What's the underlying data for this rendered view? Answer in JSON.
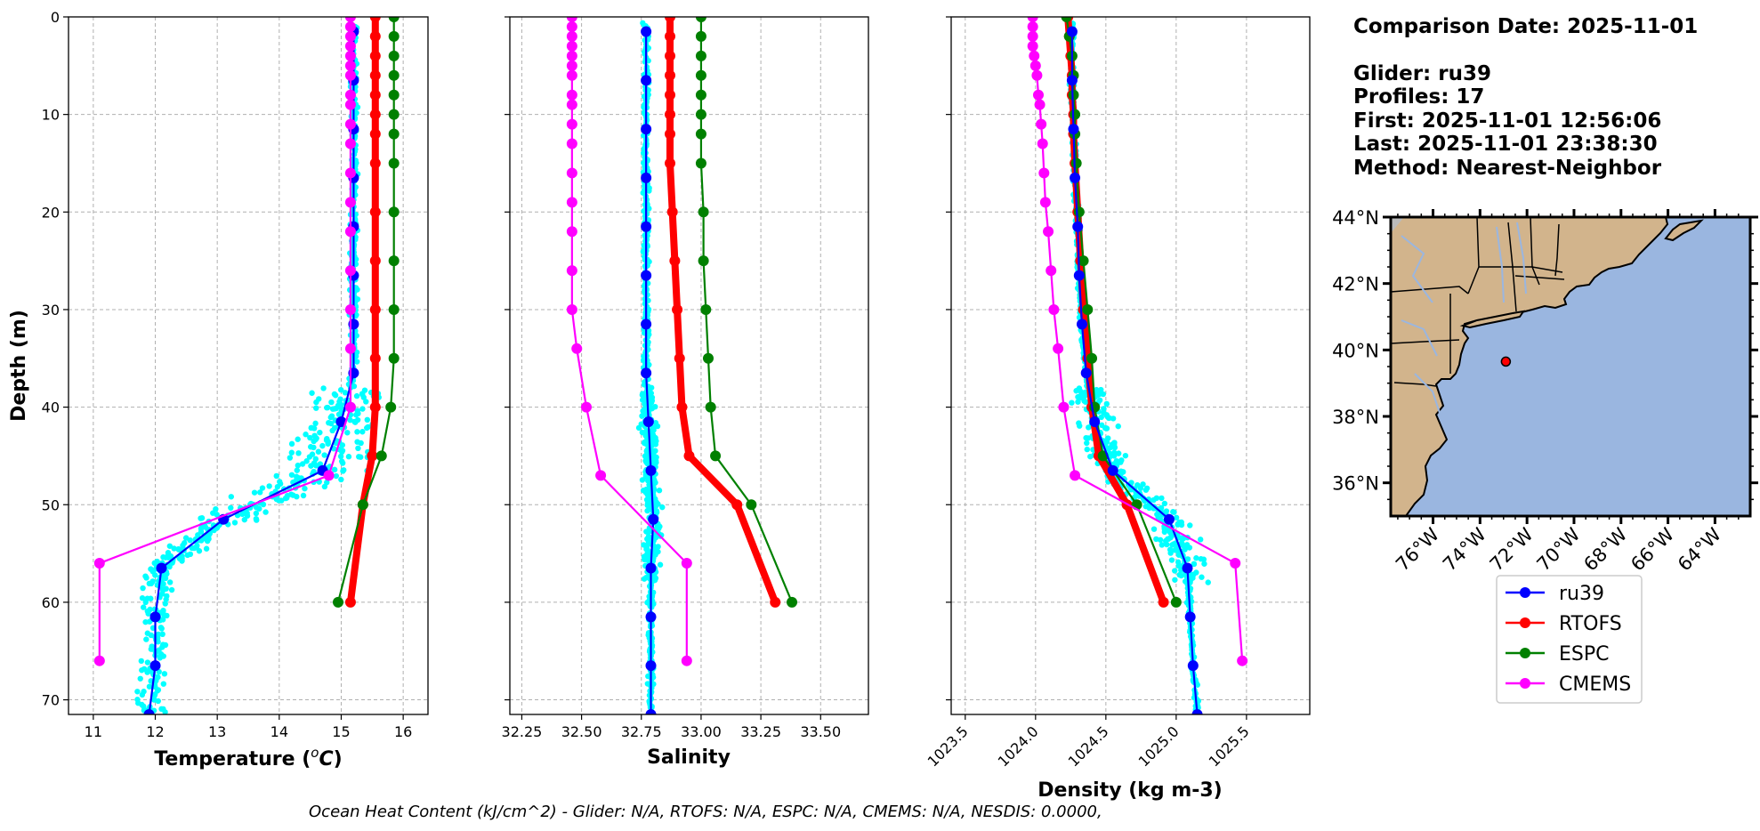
{
  "info": {
    "comparison_date": "Comparison Date: 2025-11-01",
    "glider": "Glider: ru39",
    "profiles": "Profiles: 17",
    "first": "First: 2025-11-01 12:56:06",
    "last": "Last: 2025-11-01 23:38:30",
    "method": "Method: Nearest-Neighbor"
  },
  "footer": "Ocean Heat Content (kJ/cm^2) - Glider: N/A,  RTOFS: N/A,  ESPC: N/A,  CMEMS: N/A,  NESDIS: 0.0000,",
  "colors": {
    "ru39": "#0000ff",
    "RTOFS": "#ff0000",
    "ESPC": "#008000",
    "CMEMS": "#ff00ff",
    "scatter": "#00ffff",
    "land": "#d2b48c",
    "ocean": "#9ab6e0",
    "river": "#9ab6e0"
  },
  "legend": [
    "ru39",
    "RTOFS",
    "ESPC",
    "CMEMS"
  ],
  "map": {
    "lat_ticks": [
      "44°N",
      "42°N",
      "40°N",
      "38°N",
      "36°N"
    ],
    "lon_ticks": [
      "76°W",
      "74°W",
      "72°W",
      "70°W",
      "68°W",
      "66°W",
      "64°W"
    ],
    "lat_range": [
      35,
      44
    ],
    "lon_range": [
      -77.8,
      -62.5
    ],
    "glider_position": {
      "lon": -72.9,
      "lat": 39.65
    }
  },
  "chart_data": [
    {
      "type": "line",
      "xlabel": "Temperature (°C)",
      "ylabel": "Depth (m)",
      "xlim": [
        10.6,
        16.4
      ],
      "ylim": [
        71.5,
        0
      ],
      "x_ticks": [
        11,
        12,
        13,
        14,
        15,
        16
      ],
      "y_ticks": [
        0,
        10,
        20,
        30,
        40,
        50,
        60,
        70
      ],
      "series": [
        {
          "name": "ru39",
          "depth": [
            1.5,
            6.5,
            11.5,
            16.5,
            21.5,
            26.5,
            31.5,
            36.5,
            41.5,
            46.5,
            51.5,
            56.5,
            61.5,
            66.5,
            71.5
          ],
          "values": [
            15.2,
            15.2,
            15.2,
            15.2,
            15.2,
            15.2,
            15.2,
            15.2,
            15.0,
            14.7,
            13.1,
            12.1,
            12.0,
            12.0,
            11.9
          ]
        },
        {
          "name": "RTOFS",
          "depth": [
            0,
            2,
            4,
            6,
            8,
            10,
            12,
            15,
            20,
            25,
            30,
            35,
            40,
            45,
            50,
            60
          ],
          "values": [
            15.55,
            15.55,
            15.55,
            15.55,
            15.55,
            15.55,
            15.55,
            15.55,
            15.55,
            15.55,
            15.55,
            15.55,
            15.55,
            15.5,
            15.35,
            15.15
          ]
        },
        {
          "name": "ESPC",
          "depth": [
            0,
            2,
            4,
            6,
            8,
            10,
            12,
            15,
            20,
            25,
            30,
            35,
            40,
            45,
            50,
            60
          ],
          "values": [
            15.85,
            15.85,
            15.85,
            15.85,
            15.85,
            15.85,
            15.85,
            15.85,
            15.85,
            15.85,
            15.85,
            15.85,
            15.8,
            15.65,
            15.35,
            14.95
          ]
        },
        {
          "name": "CMEMS",
          "depth": [
            0,
            1,
            2,
            3,
            4,
            5,
            6,
            8,
            9,
            11,
            13,
            16,
            19,
            22,
            26,
            30,
            34,
            40,
            47,
            56,
            66
          ],
          "values": [
            15.15,
            15.15,
            15.15,
            15.15,
            15.15,
            15.15,
            15.15,
            15.15,
            15.15,
            15.15,
            15.15,
            15.15,
            15.15,
            15.15,
            15.15,
            15.15,
            15.15,
            15.15,
            14.8,
            11.1,
            11.1
          ]
        }
      ]
    },
    {
      "type": "line",
      "xlabel": "Salinity",
      "xlim": [
        32.2,
        33.7
      ],
      "ylim": [
        71.5,
        0
      ],
      "x_ticks": [
        32.25,
        32.5,
        32.75,
        33.0,
        33.25,
        33.5
      ],
      "x_tick_labels": [
        "32.25",
        "32.50",
        "32.75",
        "33.00",
        "33.25",
        "33.50"
      ],
      "series": [
        {
          "name": "ru39",
          "depth": [
            1.5,
            6.5,
            11.5,
            16.5,
            21.5,
            26.5,
            31.5,
            36.5,
            41.5,
            46.5,
            51.5,
            56.5,
            61.5,
            66.5,
            71.5
          ],
          "values": [
            32.77,
            32.77,
            32.77,
            32.77,
            32.77,
            32.77,
            32.77,
            32.77,
            32.78,
            32.79,
            32.8,
            32.79,
            32.79,
            32.79,
            32.79
          ]
        },
        {
          "name": "RTOFS",
          "depth": [
            0,
            2,
            4,
            6,
            8,
            10,
            12,
            15,
            20,
            25,
            30,
            35,
            40,
            45,
            50,
            60
          ],
          "values": [
            32.87,
            32.87,
            32.87,
            32.87,
            32.87,
            32.87,
            32.87,
            32.87,
            32.88,
            32.89,
            32.9,
            32.91,
            32.92,
            32.95,
            33.15,
            33.31
          ]
        },
        {
          "name": "ESPC",
          "depth": [
            0,
            2,
            4,
            6,
            8,
            10,
            12,
            15,
            20,
            25,
            30,
            35,
            40,
            45,
            50,
            60
          ],
          "values": [
            33.0,
            33.0,
            33.0,
            33.0,
            33.0,
            33.0,
            33.0,
            33.0,
            33.01,
            33.01,
            33.02,
            33.03,
            33.04,
            33.06,
            33.21,
            33.38
          ]
        },
        {
          "name": "CMEMS",
          "depth": [
            0,
            1,
            2,
            3,
            4,
            5,
            6,
            8,
            9,
            11,
            13,
            16,
            19,
            22,
            26,
            30,
            34,
            40,
            47,
            56,
            66
          ],
          "values": [
            32.46,
            32.46,
            32.46,
            32.46,
            32.46,
            32.46,
            32.46,
            32.46,
            32.46,
            32.46,
            32.46,
            32.46,
            32.46,
            32.46,
            32.46,
            32.46,
            32.48,
            32.52,
            32.58,
            32.94,
            32.94
          ]
        }
      ]
    },
    {
      "type": "line",
      "xlabel": "Density (kg m-3)",
      "xlim": [
        1023.4,
        1025.95
      ],
      "ylim": [
        71.5,
        0
      ],
      "x_ticks": [
        1023.5,
        1024.0,
        1024.5,
        1025.0,
        1025.5
      ],
      "x_tick_labels": [
        "1023.5",
        "1024.0",
        "1024.5",
        "1025.0",
        "1025.5"
      ],
      "series": [
        {
          "name": "ru39",
          "depth": [
            1.5,
            6.5,
            11.5,
            16.5,
            21.5,
            26.5,
            31.5,
            36.5,
            41.5,
            46.5,
            51.5,
            56.5,
            61.5,
            66.5,
            71.5
          ],
          "values": [
            1024.26,
            1024.26,
            1024.27,
            1024.28,
            1024.3,
            1024.31,
            1024.33,
            1024.36,
            1024.42,
            1024.55,
            1024.95,
            1025.08,
            1025.1,
            1025.12,
            1025.15
          ]
        },
        {
          "name": "RTOFS",
          "depth": [
            0,
            2,
            4,
            6,
            8,
            10,
            12,
            15,
            20,
            25,
            30,
            35,
            40,
            45,
            50,
            60
          ],
          "values": [
            1024.23,
            1024.24,
            1024.25,
            1024.26,
            1024.26,
            1024.27,
            1024.27,
            1024.28,
            1024.3,
            1024.32,
            1024.34,
            1024.37,
            1024.4,
            1024.45,
            1024.65,
            1024.91
          ]
        },
        {
          "name": "ESPC",
          "depth": [
            0,
            2,
            4,
            6,
            8,
            10,
            12,
            15,
            20,
            25,
            30,
            35,
            40,
            45,
            50,
            60
          ],
          "values": [
            1024.22,
            1024.24,
            1024.26,
            1024.27,
            1024.27,
            1024.28,
            1024.28,
            1024.29,
            1024.31,
            1024.34,
            1024.37,
            1024.4,
            1024.42,
            1024.48,
            1024.72,
            1025.0
          ]
        },
        {
          "name": "CMEMS",
          "depth": [
            0,
            1,
            2,
            3,
            4,
            5,
            6,
            8,
            9,
            11,
            13,
            16,
            19,
            22,
            26,
            30,
            34,
            40,
            47,
            56,
            66
          ],
          "values": [
            1023.98,
            1023.98,
            1023.98,
            1023.98,
            1023.99,
            1024.0,
            1024.01,
            1024.02,
            1024.03,
            1024.04,
            1024.05,
            1024.06,
            1024.07,
            1024.09,
            1024.11,
            1024.13,
            1024.16,
            1024.2,
            1024.28,
            1025.42,
            1025.47
          ]
        }
      ]
    }
  ]
}
